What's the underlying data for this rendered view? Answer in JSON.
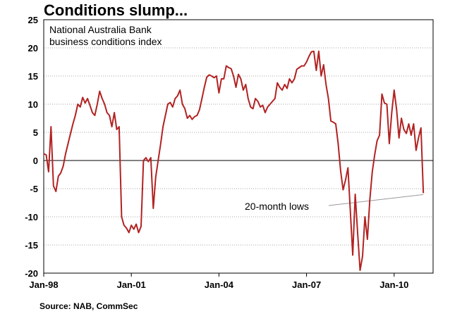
{
  "title": "Conditions slump...",
  "source": "Source: NAB, CommSec",
  "chart_data": {
    "type": "line",
    "inner_label": [
      "National Australia Bank",
      "business conditions index"
    ],
    "annotation": "20-month lows",
    "ylim": [
      -20,
      25
    ],
    "yticks": [
      25,
      20,
      15,
      10,
      5,
      0,
      -5,
      -10,
      -15,
      -20
    ],
    "xlim": [
      "1998-01",
      "2011-05"
    ],
    "xticks": [
      {
        "label": "Jan-98",
        "date": "1998-01"
      },
      {
        "label": "Jan-01",
        "date": "2001-01"
      },
      {
        "label": "Jan-04",
        "date": "2004-01"
      },
      {
        "label": "Jan-07",
        "date": "2007-01"
      },
      {
        "label": "Jan-10",
        "date": "2010-01"
      }
    ],
    "grid": "horizontal-dotted",
    "color": "#b22222",
    "series": [
      {
        "points": [
          [
            "1998-01",
            1.2
          ],
          [
            "1998-02",
            1
          ],
          [
            "1998-03",
            -2
          ],
          [
            "1998-04",
            6
          ],
          [
            "1998-05",
            -4.5
          ],
          [
            "1998-06",
            -5.5
          ],
          [
            "1998-07",
            -2.8
          ],
          [
            "1998-08",
            -2.2
          ],
          [
            "1998-09",
            -1
          ],
          [
            "1998-10",
            1.2
          ],
          [
            "1998-11",
            3
          ],
          [
            "1998-12",
            4.8
          ],
          [
            "1999-01",
            6.5
          ],
          [
            "1999-02",
            8
          ],
          [
            "1999-03",
            10
          ],
          [
            "1999-04",
            9.5
          ],
          [
            "1999-05",
            11.2
          ],
          [
            "1999-06",
            10.2
          ],
          [
            "1999-07",
            11
          ],
          [
            "1999-08",
            9.8
          ],
          [
            "1999-09",
            8.5
          ],
          [
            "1999-10",
            8
          ],
          [
            "1999-11",
            10
          ],
          [
            "1999-12",
            12.3
          ],
          [
            "2000-01",
            11
          ],
          [
            "2000-02",
            10
          ],
          [
            "2000-03",
            8.5
          ],
          [
            "2000-04",
            8
          ],
          [
            "2000-05",
            6
          ],
          [
            "2000-06",
            8.5
          ],
          [
            "2000-07",
            5.5
          ],
          [
            "2000-08",
            6
          ],
          [
            "2000-09",
            -10
          ],
          [
            "2000-10",
            -11.5
          ],
          [
            "2000-11",
            -12
          ],
          [
            "2000-12",
            -12.8
          ],
          [
            "2001-01",
            -11.5
          ],
          [
            "2001-02",
            -12.2
          ],
          [
            "2001-03",
            -11.3
          ],
          [
            "2001-04",
            -12.8
          ],
          [
            "2001-05",
            -11.7
          ],
          [
            "2001-06",
            0
          ],
          [
            "2001-07",
            0.5
          ],
          [
            "2001-08",
            -0.2
          ],
          [
            "2001-09",
            0.5
          ],
          [
            "2001-10",
            -8.5
          ],
          [
            "2001-11",
            -3
          ],
          [
            "2001-12",
            0
          ],
          [
            "2002-01",
            2.8
          ],
          [
            "2002-02",
            6
          ],
          [
            "2002-03",
            8
          ],
          [
            "2002-04",
            10
          ],
          [
            "2002-05",
            10.3
          ],
          [
            "2002-06",
            9.5
          ],
          [
            "2002-07",
            11
          ],
          [
            "2002-08",
            11.5
          ],
          [
            "2002-09",
            12.5
          ],
          [
            "2002-10",
            10
          ],
          [
            "2002-11",
            9.2
          ],
          [
            "2002-12",
            7.5
          ],
          [
            "2003-01",
            8
          ],
          [
            "2003-02",
            7.3
          ],
          [
            "2003-03",
            7.8
          ],
          [
            "2003-04",
            8
          ],
          [
            "2003-05",
            9
          ],
          [
            "2003-06",
            11
          ],
          [
            "2003-07",
            13
          ],
          [
            "2003-08",
            14.8
          ],
          [
            "2003-09",
            15.2
          ],
          [
            "2003-10",
            15
          ],
          [
            "2003-11",
            14.7
          ],
          [
            "2003-12",
            15
          ],
          [
            "2004-01",
            12
          ],
          [
            "2004-02",
            14.5
          ],
          [
            "2004-03",
            14.5
          ],
          [
            "2004-04",
            16.8
          ],
          [
            "2004-05",
            16.5
          ],
          [
            "2004-06",
            16.3
          ],
          [
            "2004-07",
            15
          ],
          [
            "2004-08",
            13
          ],
          [
            "2004-09",
            15.3
          ],
          [
            "2004-10",
            14.5
          ],
          [
            "2004-11",
            12.5
          ],
          [
            "2004-12",
            13.5
          ],
          [
            "2005-01",
            11
          ],
          [
            "2005-02",
            9.5
          ],
          [
            "2005-03",
            9.2
          ],
          [
            "2005-04",
            11
          ],
          [
            "2005-05",
            10.5
          ],
          [
            "2005-06",
            9.5
          ],
          [
            "2005-07",
            9.8
          ],
          [
            "2005-08",
            8.5
          ],
          [
            "2005-09",
            9.5
          ],
          [
            "2005-10",
            10
          ],
          [
            "2005-11",
            10.5
          ],
          [
            "2005-12",
            11
          ],
          [
            "2006-01",
            13.8
          ],
          [
            "2006-02",
            13
          ],
          [
            "2006-03",
            12.5
          ],
          [
            "2006-04",
            13.5
          ],
          [
            "2006-05",
            12.8
          ],
          [
            "2006-06",
            14.5
          ],
          [
            "2006-07",
            13.8
          ],
          [
            "2006-08",
            14.5
          ],
          [
            "2006-09",
            16.2
          ],
          [
            "2006-10",
            16.5
          ],
          [
            "2006-11",
            16.8
          ],
          [
            "2006-12",
            16.8
          ],
          [
            "2007-01",
            17.5
          ],
          [
            "2007-02",
            18.5
          ],
          [
            "2007-03",
            19.3
          ],
          [
            "2007-04",
            19.4
          ],
          [
            "2007-05",
            16
          ],
          [
            "2007-06",
            19.4
          ],
          [
            "2007-07",
            15
          ],
          [
            "2007-08",
            17
          ],
          [
            "2007-09",
            13.5
          ],
          [
            "2007-10",
            11
          ],
          [
            "2007-11",
            7
          ],
          [
            "2007-12",
            6.8
          ],
          [
            "2008-01",
            6.5
          ],
          [
            "2008-02",
            3
          ],
          [
            "2008-03",
            -1.8
          ],
          [
            "2008-04",
            -5.2
          ],
          [
            "2008-05",
            -3.5
          ],
          [
            "2008-06",
            -1.3
          ],
          [
            "2008-07",
            -9
          ],
          [
            "2008-08",
            -16.8
          ],
          [
            "2008-09",
            -6
          ],
          [
            "2008-10",
            -13
          ],
          [
            "2008-11",
            -19.5
          ],
          [
            "2008-12",
            -17
          ],
          [
            "2009-01",
            -10
          ],
          [
            "2009-02",
            -14
          ],
          [
            "2009-03",
            -7
          ],
          [
            "2009-04",
            -2
          ],
          [
            "2009-05",
            1
          ],
          [
            "2009-06",
            3.5
          ],
          [
            "2009-07",
            4.5
          ],
          [
            "2009-08",
            11.8
          ],
          [
            "2009-09",
            10.2
          ],
          [
            "2009-10",
            10
          ],
          [
            "2009-11",
            3
          ],
          [
            "2009-12",
            8.5
          ],
          [
            "2010-01",
            12.5
          ],
          [
            "2010-02",
            9
          ],
          [
            "2010-03",
            4
          ],
          [
            "2010-04",
            7.5
          ],
          [
            "2010-05",
            5.5
          ],
          [
            "2010-06",
            4.8
          ],
          [
            "2010-07",
            6.5
          ],
          [
            "2010-08",
            4.5
          ],
          [
            "2010-09",
            6.5
          ],
          [
            "2010-10",
            1.8
          ],
          [
            "2010-11",
            4
          ],
          [
            "2010-12",
            5.8
          ],
          [
            "2011-01",
            -5.8
          ]
        ]
      }
    ]
  }
}
